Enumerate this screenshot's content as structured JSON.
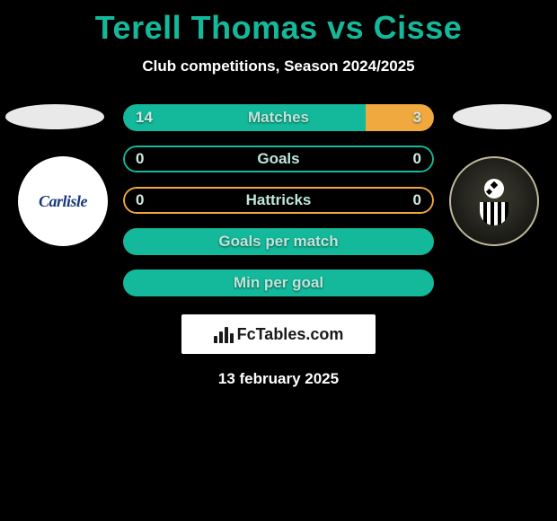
{
  "title": "Terell Thomas vs Cisse",
  "title_color": "#14b89a",
  "subtitle": "Club competitions, Season 2024/2025",
  "date": "13 february 2025",
  "left_team": {
    "badge_label": "Carlisle",
    "badge_text_color": "#1a3a7a",
    "badge_bg": "#ffffff"
  },
  "left_color": "#14b89a",
  "right_color": "#f0a93e",
  "value_text_color": "#cfe9e3",
  "label_text_color": "#bde6db",
  "fctables_label": "FcTables.com",
  "rows": [
    {
      "label": "Matches",
      "left": "14",
      "right": "3",
      "left_fill_pct": 78,
      "right_fill_pct": 22,
      "bg": "split",
      "border_color": null
    },
    {
      "label": "Goals",
      "left": "0",
      "right": "0",
      "left_fill_pct": 0,
      "right_fill_pct": 0,
      "bg": "empty",
      "border_color": "#14b89a"
    },
    {
      "label": "Hattricks",
      "left": "0",
      "right": "0",
      "left_fill_pct": 0,
      "right_fill_pct": 0,
      "bg": "empty",
      "border_color": "#f0a93e"
    },
    {
      "label": "Goals per match",
      "left": "",
      "right": "",
      "left_fill_pct": 0,
      "right_fill_pct": 0,
      "bg": "full-green",
      "border_color": null
    },
    {
      "label": "Min per goal",
      "left": "",
      "right": "",
      "left_fill_pct": 0,
      "right_fill_pct": 0,
      "bg": "full-green",
      "border_color": null
    }
  ]
}
